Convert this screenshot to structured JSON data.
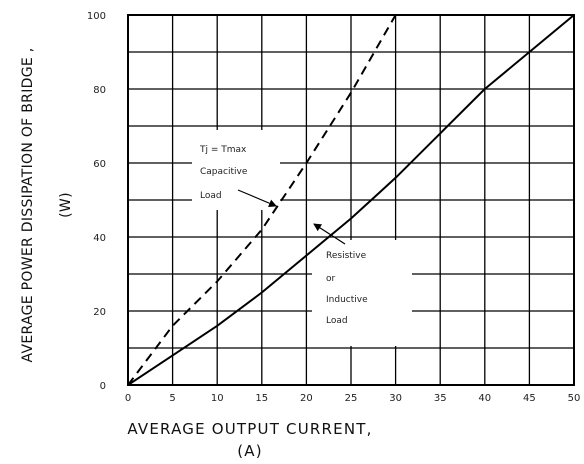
{
  "chart_data": {
    "type": "line",
    "title": "",
    "ylabel_line1": "AVERAGE POWER DISSIPATION OF BRIDGE ,",
    "ylabel_line2": "(W)",
    "xlabel_line1": "AVERAGE OUTPUT CURRENT,",
    "xlabel_line2": "(A)",
    "xlim": [
      0,
      50
    ],
    "ylim": [
      0,
      100
    ],
    "x_ticks": [
      "0",
      "5",
      "10",
      "15",
      "20",
      "25",
      "30",
      "35",
      "40",
      "45",
      "50"
    ],
    "y_ticks": [
      "0",
      "20",
      "40",
      "60",
      "80",
      "100"
    ],
    "grid": true,
    "series": [
      {
        "name": "Capacitive Load",
        "style": "dashed",
        "x": [
          0,
          5,
          10,
          15,
          20,
          25,
          30
        ],
        "y": [
          0,
          16,
          28,
          42,
          60,
          79,
          100
        ]
      },
      {
        "name": "Resistive or Inductive Load",
        "style": "solid",
        "x": [
          0,
          5,
          10,
          15,
          20,
          25,
          30,
          35,
          40,
          45,
          50
        ],
        "y": [
          0,
          8,
          16,
          25,
          35,
          45,
          56,
          68,
          80,
          90,
          100
        ]
      }
    ],
    "annotations": [
      {
        "lines": [
          "Tj = Tmax",
          "Capacitive",
          "Load"
        ],
        "points_to": "Capacitive Load"
      },
      {
        "lines": [
          "Resistive",
          "or",
          "Inductive",
          "Load"
        ],
        "points_to": "Resistive or Inductive Load"
      }
    ]
  }
}
